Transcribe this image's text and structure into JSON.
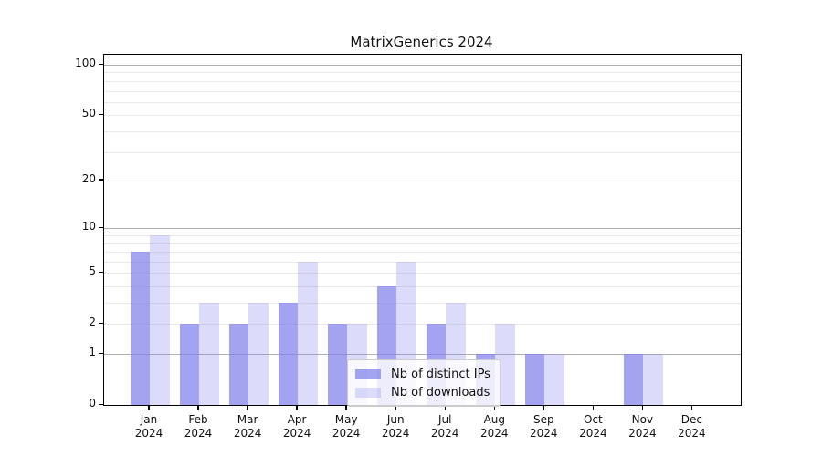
{
  "chart_data": {
    "type": "bar",
    "title": "MatrixGenerics 2024",
    "categories": [
      "Jan",
      "Feb",
      "Mar",
      "Apr",
      "May",
      "Jun",
      "Jul",
      "Aug",
      "Sep",
      "Oct",
      "Nov",
      "Dec"
    ],
    "x_sublabel": "2024",
    "series": [
      {
        "name": "Nb of distinct IPs",
        "color": "rgba(128,128,236,0.72)",
        "values": [
          7,
          2,
          2,
          3,
          2,
          4,
          2,
          1,
          1,
          0,
          1,
          0
        ]
      },
      {
        "name": "Nb of downloads",
        "color": "rgba(128,128,236,0.28)",
        "values": [
          9,
          3,
          3,
          6,
          2,
          6,
          3,
          2,
          1,
          0,
          1,
          0
        ]
      }
    ],
    "yscale": "log1p",
    "ylim": [
      0,
      115
    ],
    "y_ticks": [
      0,
      1,
      2,
      5,
      10,
      20,
      50,
      100
    ],
    "y_gridlines_major": [
      1,
      10,
      100
    ],
    "y_gridlines_minor": [
      2,
      3,
      4,
      5,
      6,
      7,
      8,
      9,
      20,
      30,
      40,
      50,
      60,
      70,
      80,
      90
    ],
    "grid": true,
    "legend_position": "lower center",
    "colors": {
      "grid_major": "#b0b0b0",
      "grid_minor": "#e9e9e9",
      "spine": "#000000",
      "text": "#111111",
      "background": "#ffffff"
    }
  }
}
